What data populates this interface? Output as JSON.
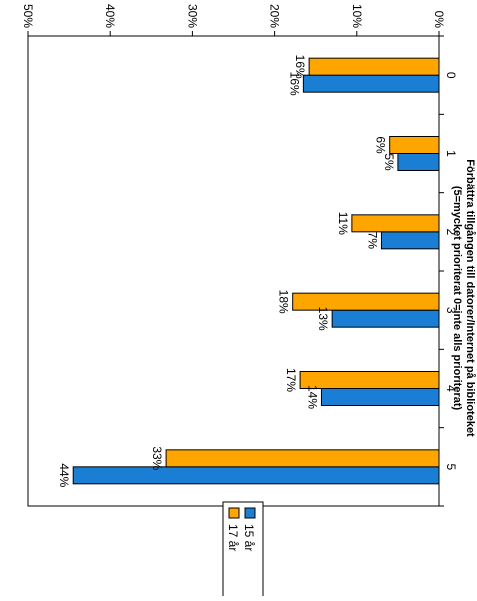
{
  "chart_data": {
    "type": "bar",
    "orientation": "horizontal",
    "title": "Förbättra tillgången till datorer/Internet på biblioteket",
    "subtitle": "(5=mycket prioriterat 0=inte alls prioriterat)",
    "categories": [
      "0",
      "1",
      "2",
      "3",
      "4",
      "5"
    ],
    "series": [
      {
        "name": "15 år",
        "color": "#1a7fd4",
        "values": [
          16.5,
          5.0,
          7.0,
          13.0,
          14.3,
          44.5
        ],
        "labels": [
          "16%",
          "5%",
          "7%",
          "13%",
          "14%",
          "44%"
        ]
      },
      {
        "name": "17 år",
        "color": "#ffa500",
        "values": [
          15.8,
          6.0,
          10.6,
          17.8,
          16.9,
          33.2
        ],
        "labels": [
          "16%",
          "6%",
          "11%",
          "18%",
          "17%",
          "33%"
        ]
      }
    ],
    "value_axis": {
      "range": [
        0,
        50
      ],
      "ticks": [
        0,
        10,
        20,
        30,
        40,
        50
      ],
      "tick_labels": [
        "0%",
        "10%",
        "20%",
        "30%",
        "40%",
        "50%"
      ]
    },
    "grid": false,
    "legend_position": "bottom-right"
  }
}
